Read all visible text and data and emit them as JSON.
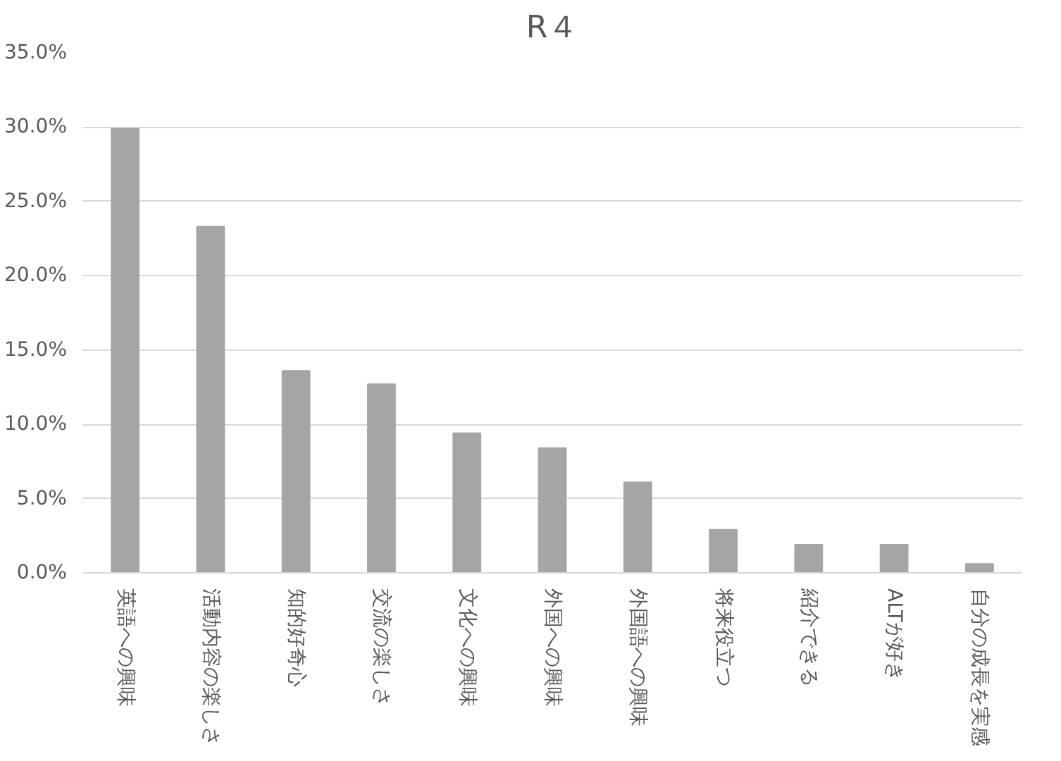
{
  "chart_data": {
    "type": "bar",
    "title": "R４",
    "categories": [
      "英語への興味",
      "活動内容の楽しさ",
      "知的好奇心",
      "交流の楽しさ",
      "文化への興味",
      "外国への興味",
      "外国語への興味",
      "将来役立つ",
      "紹介できる",
      "ALTが好き",
      "自分の成長を実感"
    ],
    "values": [
      29.9,
      23.3,
      13.6,
      12.7,
      9.4,
      8.4,
      6.1,
      2.9,
      1.9,
      1.9,
      0.6
    ],
    "color": "#a5a5a5",
    "ylim": [
      0,
      35
    ],
    "yticks": [
      {
        "value": 0,
        "label": "0.0%"
      },
      {
        "value": 5,
        "label": "5.0%"
      },
      {
        "value": 10,
        "label": "10.0%"
      },
      {
        "value": 15,
        "label": "15.0%"
      },
      {
        "value": 20,
        "label": "20.0%"
      },
      {
        "value": 25,
        "label": "25.0%"
      },
      {
        "value": 30,
        "label": "30.0%"
      },
      {
        "value": 35,
        "label": "35.0%"
      }
    ],
    "grid": "y"
  }
}
